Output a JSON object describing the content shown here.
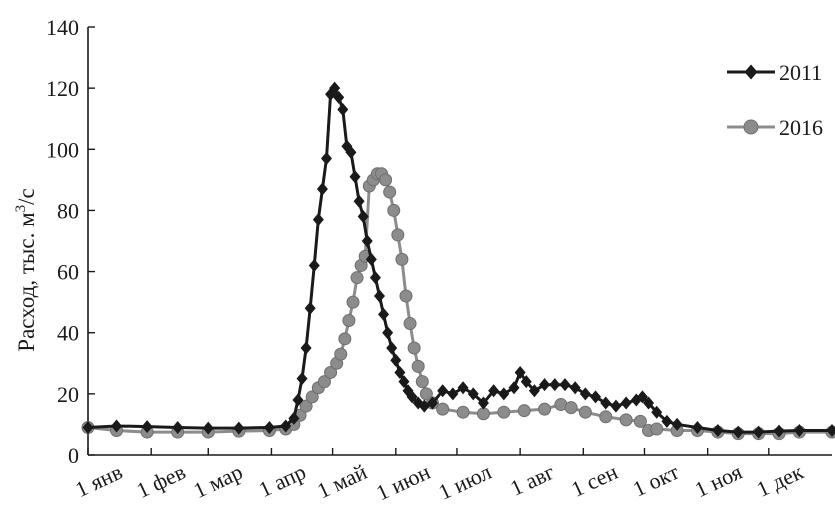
{
  "chart_data": {
    "type": "line",
    "title": "",
    "ylabel": "Расход, тыс. м³/с",
    "ylabel_main": "Расход, тыс. м",
    "ylabel_sup": "3",
    "ylabel_tail": "/с",
    "xlabel": "",
    "ylim": [
      0,
      140
    ],
    "yticks": [
      0,
      20,
      40,
      60,
      80,
      100,
      120,
      140
    ],
    "xlim": [
      1,
      366
    ],
    "x_unit": "day of year",
    "x_ticks": [
      {
        "day": 1,
        "label": "1 янв"
      },
      {
        "day": 32,
        "label": "1 фев"
      },
      {
        "day": 60,
        "label": "1 мар"
      },
      {
        "day": 91,
        "label": "1 апр"
      },
      {
        "day": 121,
        "label": "1 май"
      },
      {
        "day": 152,
        "label": "1 июн"
      },
      {
        "day": 182,
        "label": "1 июл"
      },
      {
        "day": 213,
        "label": "1 авг"
      },
      {
        "day": 244,
        "label": "1 сен"
      },
      {
        "day": 274,
        "label": "1 окт"
      },
      {
        "day": 305,
        "label": "1 ноя"
      },
      {
        "day": 335,
        "label": "1 дек"
      }
    ],
    "grid": false,
    "legend_position": "top-right",
    "series": [
      {
        "name": "2011",
        "color": "#1a1a1a",
        "marker": "diamond",
        "points": [
          [
            1,
            9
          ],
          [
            15,
            9.5
          ],
          [
            30,
            9.3
          ],
          [
            45,
            9
          ],
          [
            60,
            8.8
          ],
          [
            75,
            8.8
          ],
          [
            90,
            9
          ],
          [
            98,
            9.5
          ],
          [
            102,
            12
          ],
          [
            104,
            18
          ],
          [
            106,
            25
          ],
          [
            108,
            35
          ],
          [
            110,
            48
          ],
          [
            112,
            62
          ],
          [
            114,
            77
          ],
          [
            116,
            87
          ],
          [
            118,
            97
          ],
          [
            120,
            118
          ],
          [
            122,
            120
          ],
          [
            124,
            117
          ],
          [
            126,
            113
          ],
          [
            128,
            101
          ],
          [
            130,
            99
          ],
          [
            132,
            91
          ],
          [
            134,
            83
          ],
          [
            136,
            78
          ],
          [
            138,
            70
          ],
          [
            140,
            64
          ],
          [
            142,
            58
          ],
          [
            144,
            52
          ],
          [
            146,
            46
          ],
          [
            148,
            40
          ],
          [
            150,
            35
          ],
          [
            152,
            31
          ],
          [
            154,
            27
          ],
          [
            156,
            24
          ],
          [
            158,
            21
          ],
          [
            160,
            19
          ],
          [
            163,
            17
          ],
          [
            166,
            16
          ],
          [
            170,
            17
          ],
          [
            175,
            21
          ],
          [
            180,
            20
          ],
          [
            185,
            22
          ],
          [
            190,
            20
          ],
          [
            195,
            17
          ],
          [
            200,
            21
          ],
          [
            205,
            20
          ],
          [
            210,
            22
          ],
          [
            213,
            27
          ],
          [
            216,
            24
          ],
          [
            220,
            21
          ],
          [
            225,
            23
          ],
          [
            230,
            23
          ],
          [
            235,
            23
          ],
          [
            240,
            22
          ],
          [
            245,
            20
          ],
          [
            250,
            19
          ],
          [
            255,
            17
          ],
          [
            260,
            16
          ],
          [
            265,
            17
          ],
          [
            270,
            18
          ],
          [
            273,
            19
          ],
          [
            276,
            17
          ],
          [
            280,
            14
          ],
          [
            285,
            11
          ],
          [
            290,
            10
          ],
          [
            300,
            9
          ],
          [
            310,
            8
          ],
          [
            320,
            7.5
          ],
          [
            330,
            7.5
          ],
          [
            340,
            7.8
          ],
          [
            350,
            8
          ],
          [
            366,
            8
          ]
        ]
      },
      {
        "name": "2016",
        "color": "#8c8c8c",
        "marker": "circle",
        "points": [
          [
            1,
            9
          ],
          [
            15,
            8
          ],
          [
            30,
            7.5
          ],
          [
            45,
            7.5
          ],
          [
            60,
            7.5
          ],
          [
            75,
            7.8
          ],
          [
            90,
            8
          ],
          [
            98,
            8.5
          ],
          [
            102,
            10
          ],
          [
            105,
            13
          ],
          [
            108,
            16
          ],
          [
            111,
            19
          ],
          [
            114,
            22
          ],
          [
            117,
            24
          ],
          [
            120,
            27
          ],
          [
            123,
            30
          ],
          [
            125,
            33
          ],
          [
            127,
            38
          ],
          [
            129,
            44
          ],
          [
            131,
            50
          ],
          [
            133,
            58
          ],
          [
            135,
            62
          ],
          [
            137,
            65
          ],
          [
            139,
            88
          ],
          [
            141,
            90
          ],
          [
            143,
            92
          ],
          [
            145,
            92
          ],
          [
            147,
            90
          ],
          [
            149,
            86
          ],
          [
            151,
            80
          ],
          [
            153,
            72
          ],
          [
            155,
            64
          ],
          [
            157,
            52
          ],
          [
            159,
            43
          ],
          [
            161,
            35
          ],
          [
            163,
            29
          ],
          [
            165,
            24
          ],
          [
            167,
            20
          ],
          [
            170,
            17
          ],
          [
            175,
            15
          ],
          [
            185,
            14
          ],
          [
            195,
            13.5
          ],
          [
            205,
            14
          ],
          [
            215,
            14.5
          ],
          [
            225,
            15
          ],
          [
            233,
            16.5
          ],
          [
            238,
            15.5
          ],
          [
            245,
            14
          ],
          [
            255,
            12.5
          ],
          [
            265,
            11.5
          ],
          [
            272,
            11
          ],
          [
            276,
            8
          ],
          [
            280,
            8.5
          ],
          [
            290,
            8
          ],
          [
            300,
            8
          ],
          [
            310,
            7.5
          ],
          [
            320,
            7
          ],
          [
            330,
            7
          ],
          [
            340,
            7
          ],
          [
            350,
            7.5
          ],
          [
            366,
            7.5
          ]
        ]
      }
    ]
  }
}
